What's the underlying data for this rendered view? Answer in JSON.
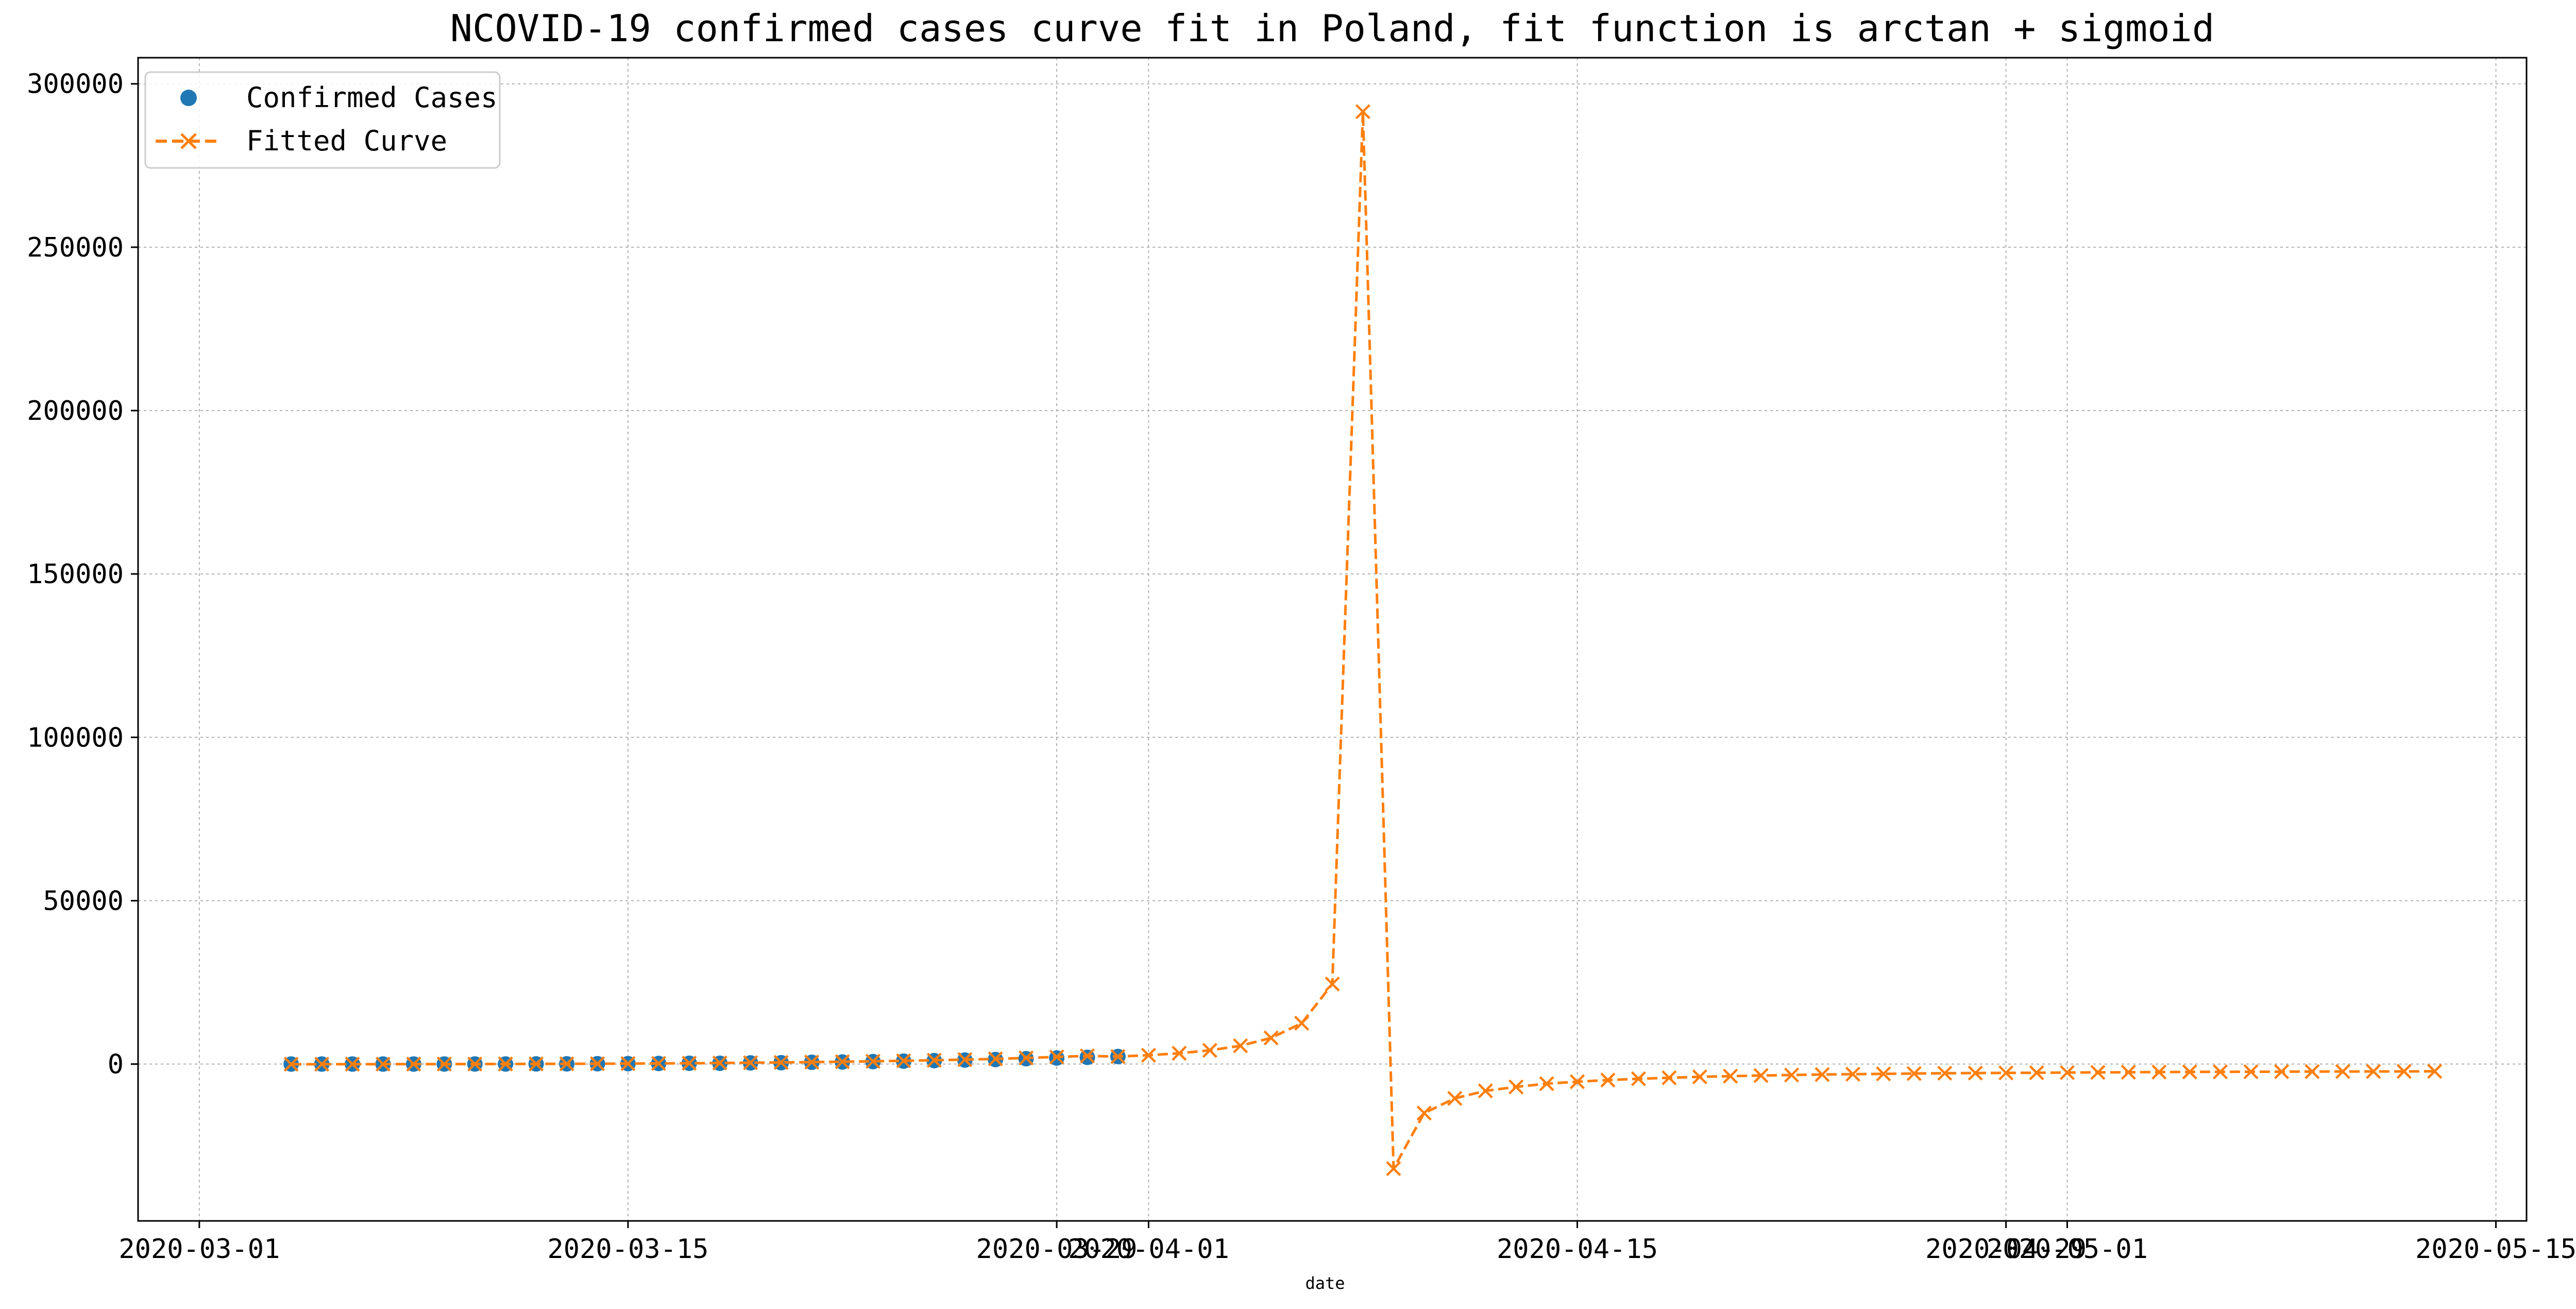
{
  "chart_data": {
    "type": "line",
    "title": "NCOVID-19 confirmed cases curve fit in Poland, fit function is arctan + sigmoid",
    "xlabel": "date",
    "ylabel": "",
    "x_axis_type": "date",
    "xlim": [
      "2020-02-28",
      "2020-05-16"
    ],
    "ylim": [
      -48000,
      308000
    ],
    "x_ticks": [
      "2020-03-01",
      "2020-03-15",
      "2020-03-29",
      "2020-04-01",
      "2020-04-15",
      "2020-04-29",
      "2020-05-01",
      "2020-05-15"
    ],
    "y_ticks": [
      0,
      50000,
      100000,
      150000,
      200000,
      250000,
      300000
    ],
    "grid": true,
    "legend_position": "top-left",
    "series": [
      {
        "name": "Confirmed Cases",
        "style": "markers",
        "marker": "circle",
        "color": "#1f77b4",
        "points": [
          [
            "2020-03-04",
            1
          ],
          [
            "2020-03-05",
            1
          ],
          [
            "2020-03-06",
            5
          ],
          [
            "2020-03-07",
            6
          ],
          [
            "2020-03-08",
            11
          ],
          [
            "2020-03-09",
            17
          ],
          [
            "2020-03-10",
            22
          ],
          [
            "2020-03-11",
            31
          ],
          [
            "2020-03-12",
            51
          ],
          [
            "2020-03-13",
            68
          ],
          [
            "2020-03-14",
            104
          ],
          [
            "2020-03-15",
            125
          ],
          [
            "2020-03-16",
            177
          ],
          [
            "2020-03-17",
            238
          ],
          [
            "2020-03-18",
            251
          ],
          [
            "2020-03-19",
            355
          ],
          [
            "2020-03-20",
            425
          ],
          [
            "2020-03-21",
            536
          ],
          [
            "2020-03-22",
            634
          ],
          [
            "2020-03-23",
            749
          ],
          [
            "2020-03-24",
            901
          ],
          [
            "2020-03-25",
            1051
          ],
          [
            "2020-03-26",
            1221
          ],
          [
            "2020-03-27",
            1389
          ],
          [
            "2020-03-28",
            1638
          ],
          [
            "2020-03-29",
            1862
          ],
          [
            "2020-03-30",
            2055
          ],
          [
            "2020-03-31",
            2311
          ]
        ]
      },
      {
        "name": "Fitted Curve",
        "style": "dashed-line-x-markers",
        "marker": "x",
        "color": "#ff7f0e",
        "points": [
          [
            "2020-03-04",
            -50
          ],
          [
            "2020-03-05",
            -40
          ],
          [
            "2020-03-06",
            -30
          ],
          [
            "2020-03-07",
            -20
          ],
          [
            "2020-03-08",
            -10
          ],
          [
            "2020-03-09",
            0
          ],
          [
            "2020-03-10",
            10
          ],
          [
            "2020-03-11",
            30
          ],
          [
            "2020-03-12",
            50
          ],
          [
            "2020-03-13",
            80
          ],
          [
            "2020-03-14",
            110
          ],
          [
            "2020-03-15",
            150
          ],
          [
            "2020-03-16",
            200
          ],
          [
            "2020-03-17",
            260
          ],
          [
            "2020-03-18",
            330
          ],
          [
            "2020-03-19",
            410
          ],
          [
            "2020-03-20",
            500
          ],
          [
            "2020-03-21",
            600
          ],
          [
            "2020-03-22",
            720
          ],
          [
            "2020-03-23",
            850
          ],
          [
            "2020-03-24",
            1000
          ],
          [
            "2020-03-25",
            1170
          ],
          [
            "2020-03-26",
            1370
          ],
          [
            "2020-03-27",
            1600
          ],
          [
            "2020-03-28",
            1870
          ],
          [
            "2020-03-29",
            2180
          ],
          [
            "2020-03-30",
            2500
          ],
          [
            "2020-03-31",
            2300
          ],
          [
            "2020-04-01",
            2700
          ],
          [
            "2020-04-02",
            3300
          ],
          [
            "2020-04-03",
            4200
          ],
          [
            "2020-04-04",
            5600
          ],
          [
            "2020-04-05",
            8000
          ],
          [
            "2020-04-06",
            12500
          ],
          [
            "2020-04-07",
            24500
          ],
          [
            "2020-04-08",
            291500
          ],
          [
            "2020-04-09",
            -32000
          ],
          [
            "2020-04-10",
            -15000
          ],
          [
            "2020-04-11",
            -10500
          ],
          [
            "2020-04-12",
            -8200
          ],
          [
            "2020-04-13",
            -7000
          ],
          [
            "2020-04-14",
            -6000
          ],
          [
            "2020-04-15",
            -5400
          ],
          [
            "2020-04-16",
            -4900
          ],
          [
            "2020-04-17",
            -4500
          ],
          [
            "2020-04-18",
            -4200
          ],
          [
            "2020-04-19",
            -3900
          ],
          [
            "2020-04-20",
            -3700
          ],
          [
            "2020-04-21",
            -3500
          ],
          [
            "2020-04-22",
            -3350
          ],
          [
            "2020-04-23",
            -3200
          ],
          [
            "2020-04-24",
            -3100
          ],
          [
            "2020-04-25",
            -3000
          ],
          [
            "2020-04-26",
            -2900
          ],
          [
            "2020-04-27",
            -2800
          ],
          [
            "2020-04-28",
            -2750
          ],
          [
            "2020-04-29",
            -2700
          ],
          [
            "2020-04-30",
            -2650
          ],
          [
            "2020-05-01",
            -2600
          ],
          [
            "2020-05-02",
            -2550
          ],
          [
            "2020-05-03",
            -2500
          ],
          [
            "2020-05-04",
            -2450
          ],
          [
            "2020-05-05",
            -2400
          ],
          [
            "2020-05-06",
            -2380
          ],
          [
            "2020-05-07",
            -2350
          ],
          [
            "2020-05-08",
            -2320
          ],
          [
            "2020-05-09",
            -2300
          ],
          [
            "2020-05-10",
            -2280
          ],
          [
            "2020-05-11",
            -2260
          ],
          [
            "2020-05-12",
            -2240
          ],
          [
            "2020-05-13",
            -2220
          ]
        ]
      }
    ]
  }
}
